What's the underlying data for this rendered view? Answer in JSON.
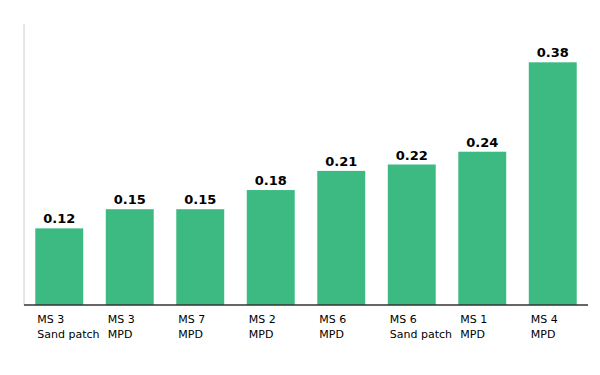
{
  "chart_data": {
    "type": "bar",
    "categories": [
      [
        "MS 3",
        "Sand patch"
      ],
      [
        "MS 3",
        "MPD"
      ],
      [
        "MS 7",
        "MPD"
      ],
      [
        "MS 2",
        "MPD"
      ],
      [
        "MS 6",
        "MPD"
      ],
      [
        "MS 6",
        "Sand patch"
      ],
      [
        "MS 1",
        "MPD"
      ],
      [
        "MS 4",
        "MPD"
      ]
    ],
    "values": [
      0.12,
      0.15,
      0.15,
      0.18,
      0.21,
      0.22,
      0.24,
      0.38
    ],
    "color": "#3dba82",
    "ylim": [
      0,
      0.44
    ],
    "data_labels": true,
    "tick_labels": "x",
    "grid": false
  }
}
